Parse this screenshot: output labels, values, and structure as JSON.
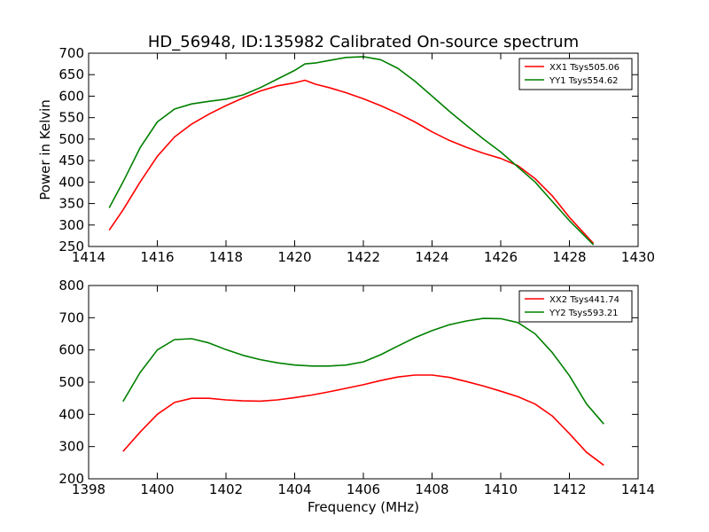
{
  "chart_data": [
    {
      "type": "line",
      "title": "HD_56948, ID:135982 Calibrated On-source spectrum",
      "xlabel": "",
      "ylabel": "Power in Kelvin",
      "xlim": [
        1414,
        1430
      ],
      "ylim": [
        250,
        700
      ],
      "xticks": [
        1414,
        1416,
        1418,
        1420,
        1422,
        1424,
        1426,
        1428,
        1430
      ],
      "yticks": [
        250,
        300,
        350,
        400,
        450,
        500,
        550,
        600,
        650,
        700
      ],
      "legend": "top-right",
      "series": [
        {
          "name": "XX1 Tsys505.06",
          "color": "#ff0000",
          "x": [
            1414.6,
            1415.0,
            1415.5,
            1416.0,
            1416.5,
            1417.0,
            1417.5,
            1418.0,
            1418.5,
            1419.0,
            1419.5,
            1420.0,
            1420.3,
            1420.6,
            1421.0,
            1421.5,
            1422.0,
            1422.5,
            1423.0,
            1423.5,
            1424.0,
            1424.5,
            1425.0,
            1425.5,
            1426.0,
            1426.5,
            1427.0,
            1427.5,
            1428.0,
            1428.7
          ],
          "y": [
            288,
            335,
            400,
            460,
            505,
            535,
            558,
            578,
            596,
            612,
            624,
            631,
            637,
            628,
            620,
            608,
            594,
            578,
            560,
            540,
            517,
            497,
            481,
            467,
            455,
            438,
            408,
            368,
            318,
            257
          ]
        },
        {
          "name": "YY1 Tsys554.62",
          "color": "#008000",
          "x": [
            1414.6,
            1415.0,
            1415.5,
            1416.0,
            1416.5,
            1417.0,
            1417.5,
            1418.0,
            1418.5,
            1419.0,
            1419.5,
            1420.0,
            1420.3,
            1420.6,
            1421.0,
            1421.5,
            1422.0,
            1422.5,
            1423.0,
            1423.5,
            1424.0,
            1424.5,
            1425.0,
            1425.5,
            1426.0,
            1426.5,
            1427.0,
            1427.5,
            1428.0,
            1428.7
          ],
          "y": [
            340,
            400,
            480,
            540,
            570,
            582,
            588,
            593,
            603,
            620,
            640,
            660,
            675,
            677,
            683,
            690,
            692,
            685,
            665,
            635,
            600,
            565,
            532,
            500,
            470,
            435,
            400,
            355,
            310,
            254
          ]
        }
      ]
    },
    {
      "type": "line",
      "title": "",
      "xlabel": "Frequency (MHz)",
      "ylabel": "",
      "xlim": [
        1398,
        1414
      ],
      "ylim": [
        200,
        800
      ],
      "xticks": [
        1398,
        1400,
        1402,
        1404,
        1406,
        1408,
        1410,
        1412,
        1414
      ],
      "yticks": [
        200,
        300,
        400,
        500,
        600,
        700,
        800
      ],
      "legend": "top-right",
      "series": [
        {
          "name": "XX2 Tsys441.74",
          "color": "#ff0000",
          "x": [
            1399.0,
            1399.5,
            1400.0,
            1400.5,
            1401.0,
            1401.5,
            1402.0,
            1402.5,
            1403.0,
            1403.5,
            1404.0,
            1404.5,
            1405.0,
            1405.5,
            1406.0,
            1406.5,
            1407.0,
            1407.5,
            1408.0,
            1408.5,
            1409.0,
            1409.5,
            1410.0,
            1410.5,
            1411.0,
            1411.5,
            1412.0,
            1412.5,
            1413.0
          ],
          "y": [
            285,
            345,
            400,
            437,
            450,
            450,
            445,
            442,
            441,
            445,
            452,
            460,
            470,
            481,
            492,
            505,
            516,
            522,
            522,
            515,
            502,
            488,
            472,
            455,
            432,
            395,
            340,
            282,
            242
          ]
        },
        {
          "name": "YY2 Tsys593.21",
          "color": "#008000",
          "x": [
            1399.0,
            1399.5,
            1400.0,
            1400.5,
            1401.0,
            1401.5,
            1402.0,
            1402.5,
            1403.0,
            1403.5,
            1404.0,
            1404.5,
            1405.0,
            1405.5,
            1406.0,
            1406.5,
            1407.0,
            1407.5,
            1408.0,
            1408.5,
            1409.0,
            1409.5,
            1410.0,
            1410.5,
            1411.0,
            1411.5,
            1412.0,
            1412.5,
            1413.0
          ],
          "y": [
            440,
            530,
            600,
            632,
            635,
            622,
            601,
            583,
            570,
            560,
            553,
            550,
            550,
            553,
            563,
            585,
            612,
            638,
            660,
            678,
            690,
            698,
            697,
            685,
            650,
            592,
            520,
            432,
            370
          ]
        }
      ]
    }
  ]
}
